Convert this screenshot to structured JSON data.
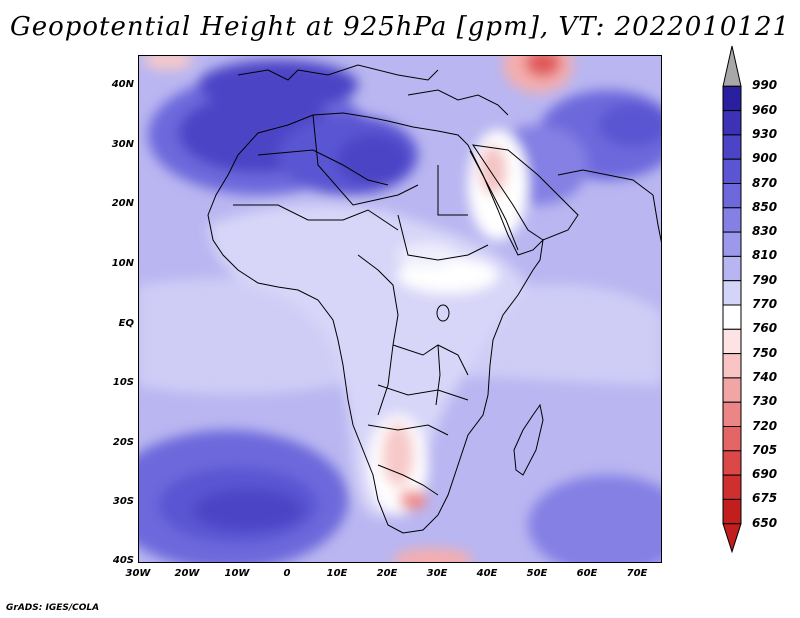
{
  "title": "Geopotential Height at 925hPa [gpm], VT: 2022010121",
  "credit": "GrADS: IGES/COLA",
  "axes": {
    "lat_labels": [
      "40N",
      "30N",
      "20N",
      "10N",
      "EQ",
      "10S",
      "20S",
      "30S",
      "40S"
    ],
    "lon_labels": [
      "30W",
      "20W",
      "10W",
      "0",
      "10E",
      "20E",
      "30E",
      "40E",
      "50E",
      "60E",
      "70E"
    ]
  },
  "colorbar": {
    "levels": [
      "990",
      "960",
      "930",
      "900",
      "870",
      "850",
      "830",
      "810",
      "790",
      "770",
      "760",
      "750",
      "740",
      "730",
      "720",
      "705",
      "690",
      "675",
      "650"
    ],
    "colors": [
      "#a8a8a8",
      "#2a1f9e",
      "#3d32b6",
      "#4b44c6",
      "#5a55d2",
      "#6d69dc",
      "#8480e4",
      "#9c99ec",
      "#b7b5f2",
      "#d4d3f8",
      "#ffffff",
      "#fde3e3",
      "#f8c4c4",
      "#f2a5a5",
      "#ec8585",
      "#e46565",
      "#dc4747",
      "#d02f2f",
      "#c21e1e"
    ]
  },
  "map_colors": {
    "ocean_base": "#b9b6f1",
    "land_low": "#d8d6f8",
    "high_dark": "#3d32b6",
    "high_mid": "#6d69dc",
    "low_white": "#ffffff",
    "low_pink": "#f4aeae",
    "low_red": "#e05a5a",
    "coast": "#000000"
  }
}
